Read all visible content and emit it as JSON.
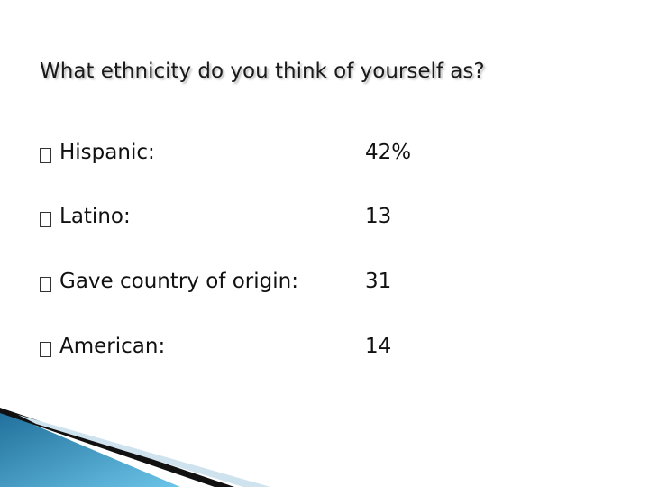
{
  "title": "What ethnicity do you think of yourself as?",
  "items": [
    {
      "label": "Hispanic:",
      "value": "42%"
    },
    {
      "label": "Latino:",
      "value": "13"
    },
    {
      "label": "Gave country of origin:",
      "value": "31"
    },
    {
      "label": "American:",
      "value": "14"
    }
  ]
}
